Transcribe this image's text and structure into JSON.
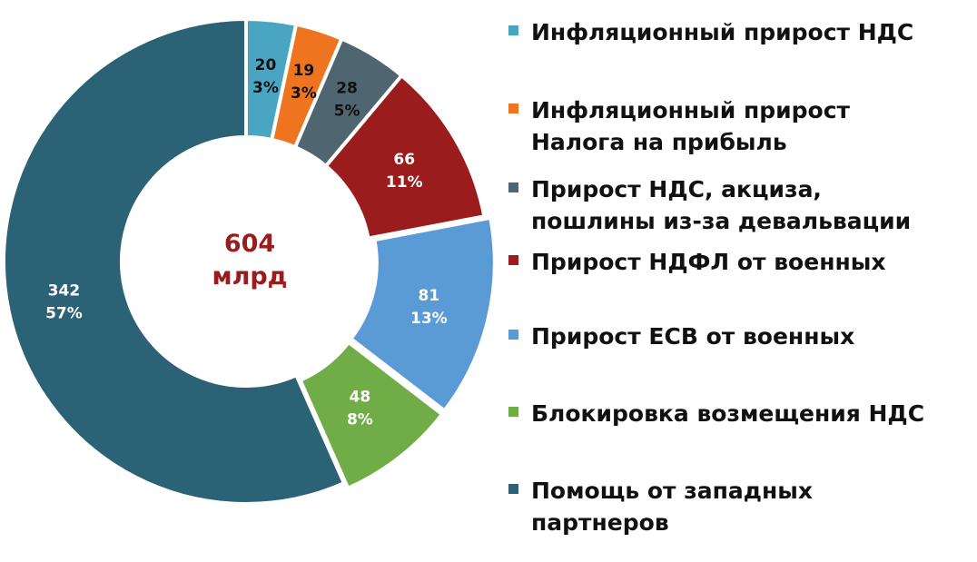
{
  "chart_data": {
    "type": "pie",
    "donut": true,
    "center_label": {
      "value": "604",
      "unit": "млрд",
      "color": "#9b1c1c"
    },
    "total": 604,
    "slices": [
      {
        "name": "Инфляционный прирост НДС",
        "value": 20,
        "percent": "3%",
        "color": "#4aa5c3",
        "label_color": "#111111"
      },
      {
        "name": "Инфляционный прирост\nНалога на прибыль",
        "value": 19,
        "percent": "3%",
        "color": "#ef7420",
        "label_color": "#111111"
      },
      {
        "name": "Прирост НДС, акциза,\nпошлины из-за девальвации",
        "value": 28,
        "percent": "5%",
        "color": "#4f6570",
        "label_color": "#111111"
      },
      {
        "name": "Прирост НДФЛ от военных",
        "value": 66,
        "percent": "11%",
        "color": "#9b1c1c",
        "label_color": "#ffffff"
      },
      {
        "name": "Прирост ЕСВ от военных",
        "value": 81,
        "percent": "13%",
        "color": "#5b9bd5",
        "label_color": "#ffffff"
      },
      {
        "name": "Блокировка возмещения НДС",
        "value": 48,
        "percent": "8%",
        "color": "#70ad47",
        "label_color": "#ffffff"
      },
      {
        "name": "Помощь от западных\nпартнеров",
        "value": 342,
        "percent": "57%",
        "color": "#2b6276",
        "label_color": "#ffffff"
      }
    ],
    "legend_position": "right"
  }
}
